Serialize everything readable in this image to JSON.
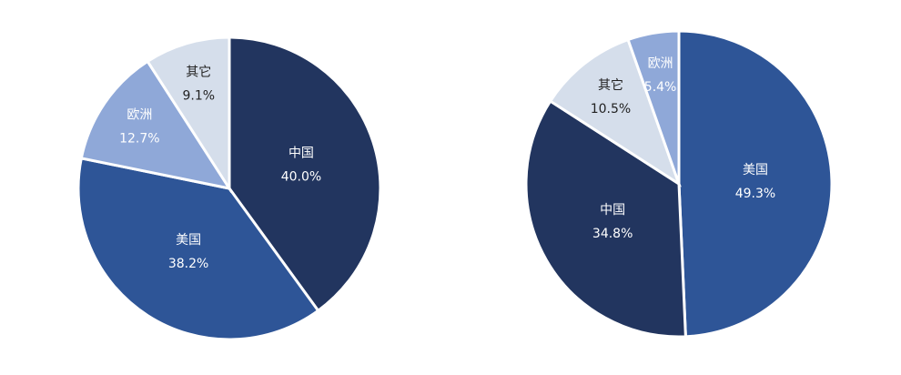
{
  "chart_data": [
    {
      "type": "pie",
      "categories": [
        "中国",
        "美国",
        "欧洲",
        "其它"
      ],
      "values": [
        40.0,
        38.2,
        12.7,
        9.1
      ],
      "value_labels": [
        "40.0%",
        "38.2%",
        "12.7%",
        "9.1%"
      ],
      "colors": [
        "#22355f",
        "#2e5597",
        "#8fa8d8",
        "#d5deeb"
      ]
    },
    {
      "type": "pie",
      "categories": [
        "美国",
        "中国",
        "其它",
        "欧洲"
      ],
      "values": [
        49.3,
        34.8,
        10.5,
        5.4
      ],
      "value_labels": [
        "49.3%",
        "34.8%",
        "10.5%",
        "5.4%"
      ],
      "colors": [
        "#2e5597",
        "#22355f",
        "#d5deeb",
        "#8fa8d8"
      ]
    }
  ]
}
